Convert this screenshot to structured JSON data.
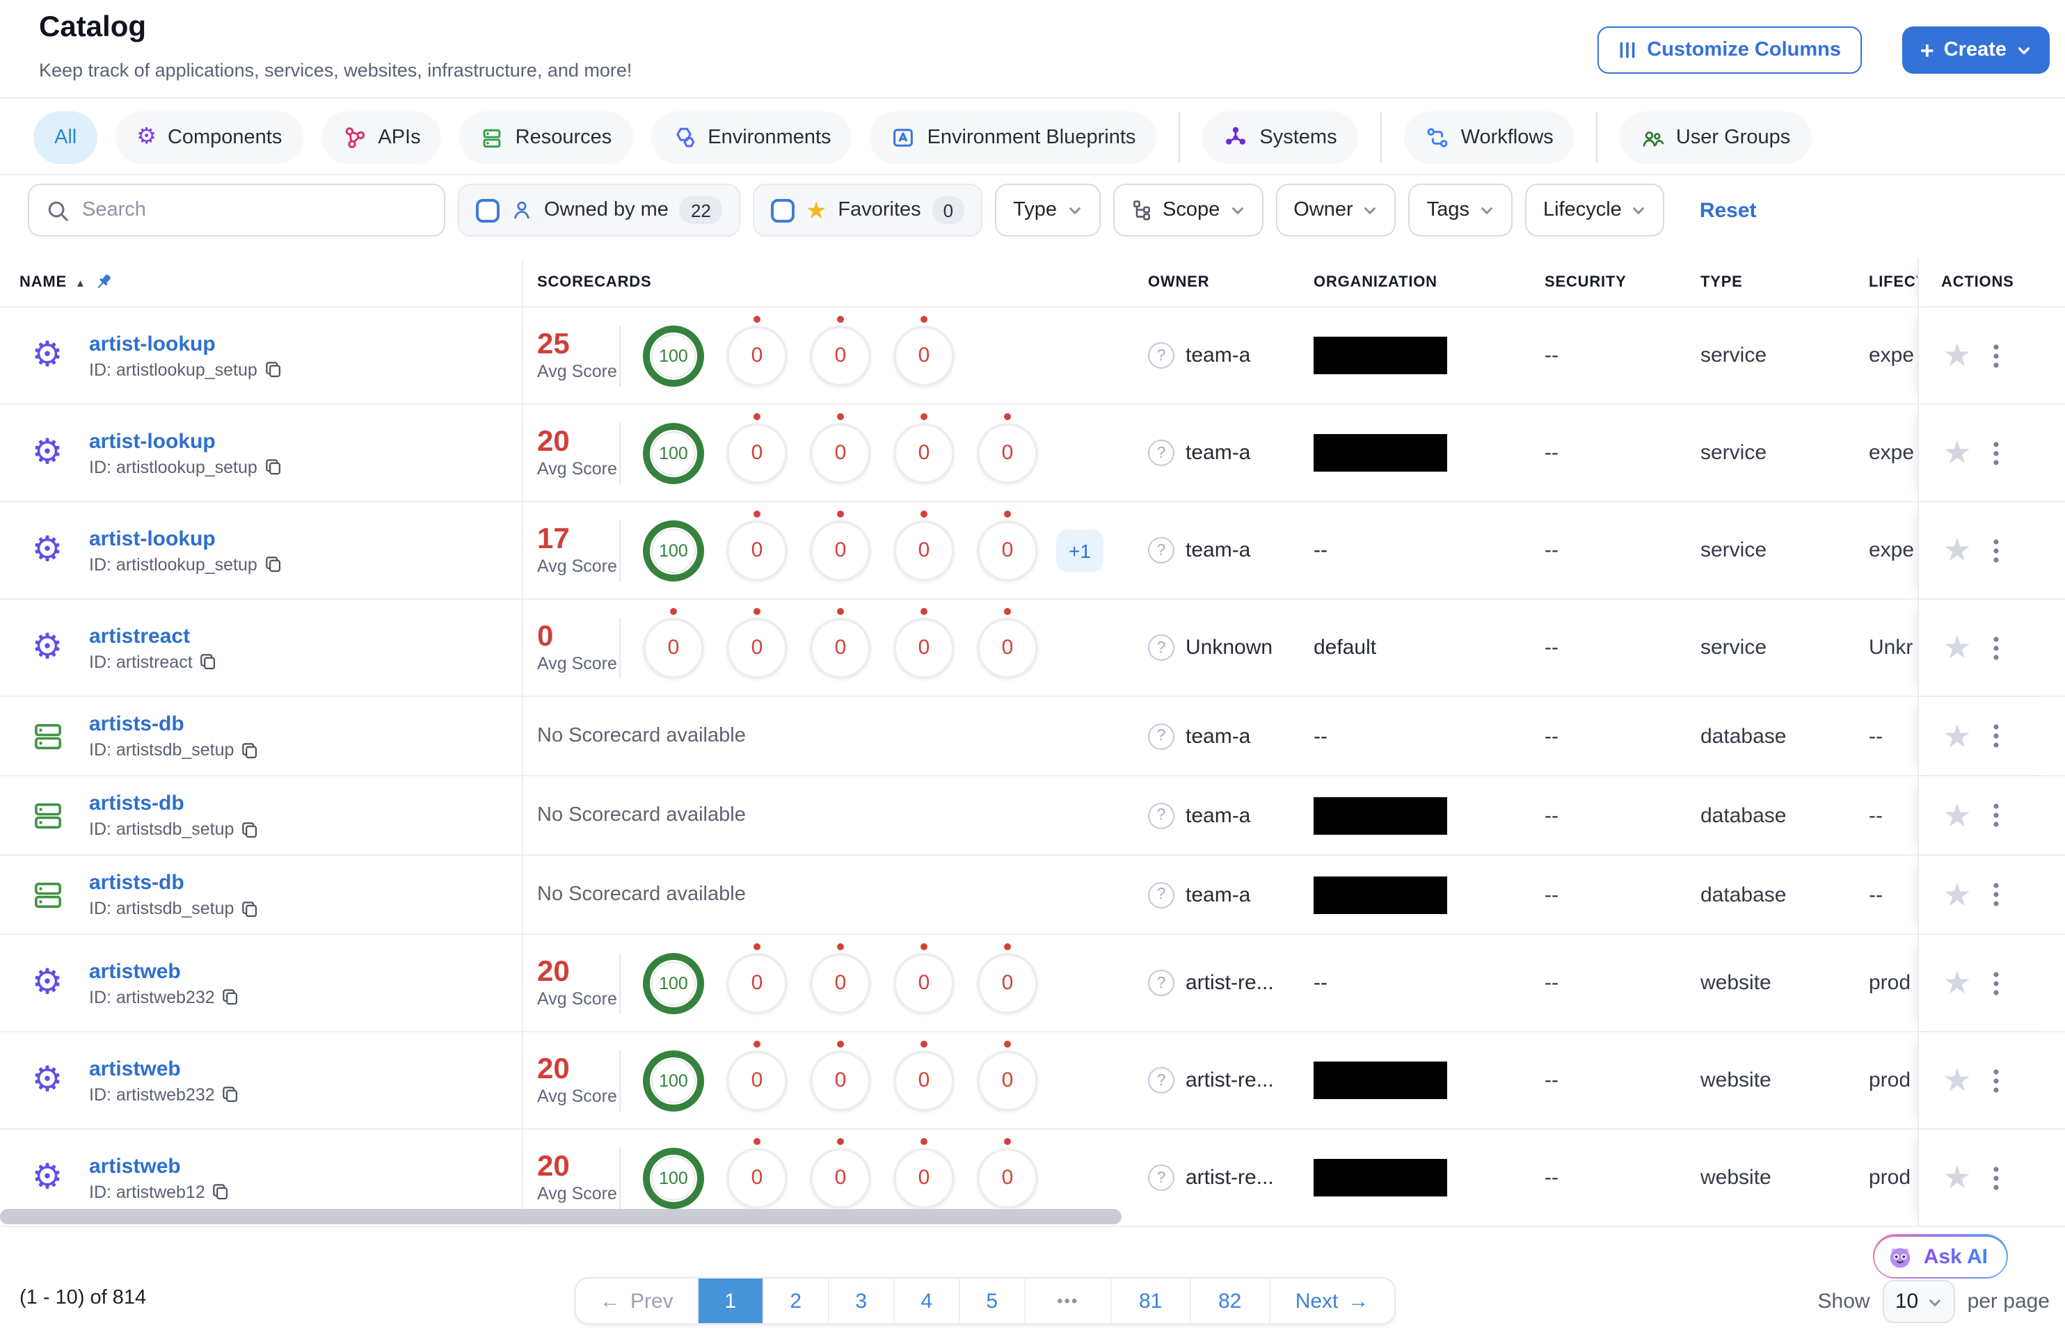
{
  "colors": {
    "accent_blue": "#3472d7",
    "link_blue": "#2e6fd0",
    "score_red": "#d2413c",
    "score_green": "#35823c",
    "favorite_yellow": "#f2b824",
    "redaction": "#000000"
  },
  "header": {
    "title": "Catalog",
    "subtitle": "Keep track of applications, services, websites, infrastructure, and more!",
    "customize_columns_label": "Customize Columns",
    "create_label": "Create"
  },
  "tabs": [
    {
      "label": "All",
      "icon": null,
      "active": true
    },
    {
      "label": "Components",
      "icon": "gear-icon"
    },
    {
      "label": "APIs",
      "icon": "api-icon"
    },
    {
      "label": "Resources",
      "icon": "resources-icon"
    },
    {
      "label": "Environments",
      "icon": "environments-icon"
    },
    {
      "label": "Environment Blueprints",
      "icon": "blueprints-icon",
      "divider_after": true
    },
    {
      "label": "Systems",
      "icon": "systems-icon",
      "divider_after": true
    },
    {
      "label": "Workflows",
      "icon": "workflows-icon",
      "divider_after": true
    },
    {
      "label": "User Groups",
      "icon": "user-groups-icon"
    }
  ],
  "filters": {
    "search_placeholder": "Search",
    "owned_by_me": {
      "label": "Owned by me",
      "count": "22",
      "checked": false
    },
    "favorites": {
      "label": "Favorites",
      "count": "0",
      "checked": false
    },
    "dropdowns": [
      {
        "label": "Type"
      },
      {
        "label": "Scope",
        "icon": "scope-tree-icon"
      },
      {
        "label": "Owner"
      },
      {
        "label": "Tags"
      },
      {
        "label": "Lifecycle"
      }
    ],
    "reset_label": "Reset"
  },
  "table": {
    "columns": [
      "NAME",
      "SCORECARDS",
      "OWNER",
      "ORGANIZATION",
      "SECURITY",
      "TYPE",
      "LIFECYCLE",
      "ACTIONS"
    ],
    "avg_score_label": "Avg Score",
    "no_scorecard_text": "No Scorecard available",
    "rows": [
      {
        "icon": "gear-icon",
        "name": "artist-lookup",
        "id": "ID: artistlookup_setup",
        "score": "25",
        "circles": [
          "100",
          "0",
          "0",
          "0"
        ],
        "extra": null,
        "owner": "team-a",
        "org": null,
        "org_redacted": true,
        "security": "--",
        "type": "service",
        "lifecycle": "expe",
        "size": "tall"
      },
      {
        "icon": "gear-icon",
        "name": "artist-lookup",
        "id": "ID: artistlookup_setup",
        "score": "20",
        "circles": [
          "100",
          "0",
          "0",
          "0",
          "0"
        ],
        "extra": null,
        "owner": "team-a",
        "org": null,
        "org_redacted": true,
        "security": "--",
        "type": "service",
        "lifecycle": "expe",
        "size": "tall"
      },
      {
        "icon": "gear-icon",
        "name": "artist-lookup",
        "id": "ID: artistlookup_setup",
        "score": "17",
        "circles": [
          "100",
          "0",
          "0",
          "0",
          "0"
        ],
        "extra": "+1",
        "owner": "team-a",
        "org": "--",
        "org_redacted": false,
        "security": "--",
        "type": "service",
        "lifecycle": "expe",
        "size": "tall"
      },
      {
        "icon": "gear-icon",
        "name": "artistreact",
        "id": "ID: artistreact",
        "score": "0",
        "circles": [
          "0",
          "0",
          "0",
          "0",
          "0"
        ],
        "extra": null,
        "owner": "Unknown",
        "org": "default",
        "org_redacted": false,
        "security": "--",
        "type": "service",
        "lifecycle": "Unkr",
        "size": "tall"
      },
      {
        "icon": "database-icon",
        "name": "artists-db",
        "id": "ID: artistsdb_setup",
        "no_scorecard": true,
        "owner": "team-a",
        "org": "--",
        "org_redacted": false,
        "security": "--",
        "type": "database",
        "lifecycle": "--",
        "size": "short"
      },
      {
        "icon": "database-icon",
        "name": "artists-db",
        "id": "ID: artistsdb_setup",
        "no_scorecard": true,
        "owner": "team-a",
        "org": null,
        "org_redacted": true,
        "security": "--",
        "type": "database",
        "lifecycle": "--",
        "size": "short"
      },
      {
        "icon": "database-icon",
        "name": "artists-db",
        "id": "ID: artistsdb_setup",
        "no_scorecard": true,
        "owner": "team-a",
        "org": null,
        "org_redacted": true,
        "security": "--",
        "type": "database",
        "lifecycle": "--",
        "size": "short"
      },
      {
        "icon": "gear-icon",
        "name": "artistweb",
        "id": "ID: artistweb232",
        "score": "20",
        "circles": [
          "100",
          "0",
          "0",
          "0",
          "0"
        ],
        "extra": null,
        "owner": "artist-re...",
        "org": "--",
        "org_redacted": false,
        "security": "--",
        "type": "website",
        "lifecycle": "prod",
        "size": "tall"
      },
      {
        "icon": "gear-icon",
        "name": "artistweb",
        "id": "ID: artistweb232",
        "score": "20",
        "circles": [
          "100",
          "0",
          "0",
          "0",
          "0"
        ],
        "extra": null,
        "owner": "artist-re...",
        "org": null,
        "org_redacted": true,
        "security": "--",
        "type": "website",
        "lifecycle": "prod",
        "size": "tall"
      },
      {
        "icon": "gear-icon",
        "name": "artistweb",
        "id": "ID: artistweb12",
        "score": "20",
        "circles": [
          "100",
          "0",
          "0",
          "0",
          "0"
        ],
        "extra": null,
        "owner": "artist-re...",
        "org": null,
        "org_redacted": true,
        "security": "--",
        "type": "website",
        "lifecycle": "prod",
        "size": "tall"
      }
    ]
  },
  "pagination": {
    "range_label": "(1 - 10) of 814",
    "prev_label": "Prev",
    "pages": [
      "1",
      "2",
      "3",
      "4",
      "5",
      "•••",
      "81",
      "82"
    ],
    "active_page": "1",
    "next_label": "Next"
  },
  "footer": {
    "show_label": "Show",
    "page_size": "10",
    "per_page_label": "per page",
    "ask_ai_label": "Ask AI"
  }
}
